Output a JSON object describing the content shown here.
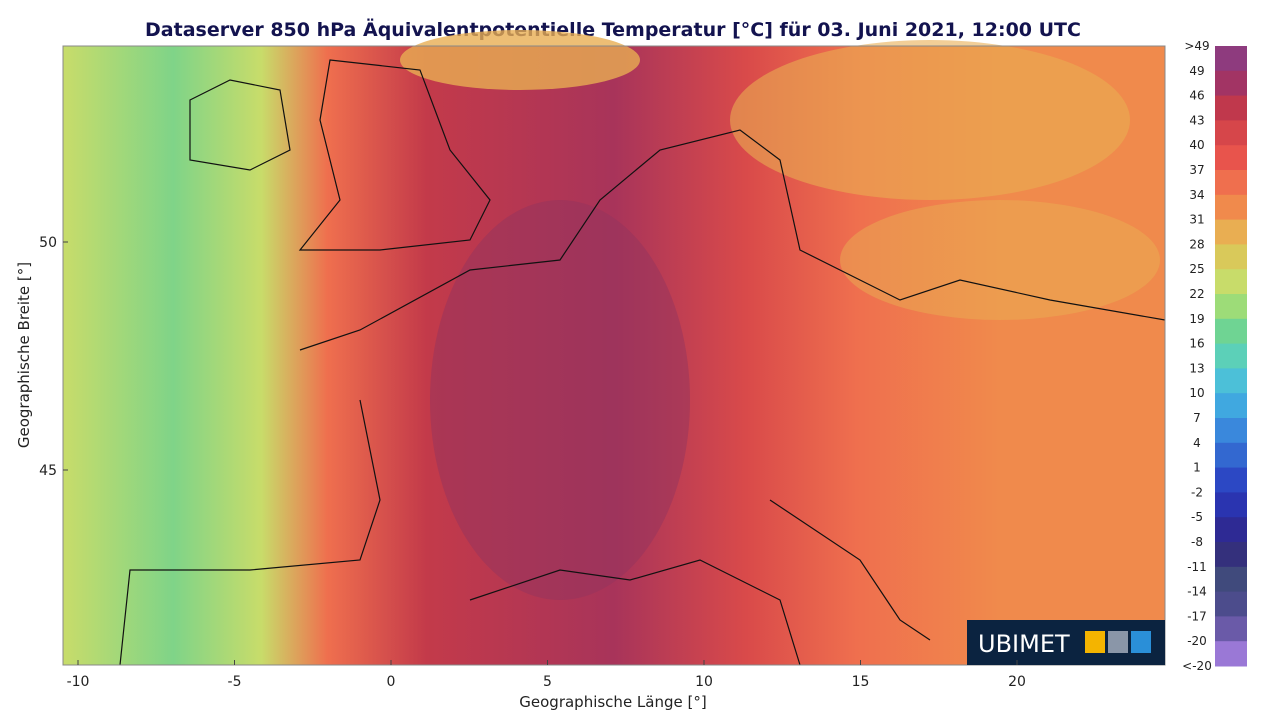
{
  "title": "Dataserver 850 hPa Äquivalentpotentielle Temperatur [°C] für 03. Juni 2021, 12:00 UTC",
  "x_axis": {
    "label": "Geographische Länge [°]",
    "ticks": [
      -10,
      -5,
      0,
      5,
      10,
      15,
      20
    ]
  },
  "y_axis": {
    "label": "Geographische Breite [°]",
    "ticks": [
      50,
      45
    ]
  },
  "colorbar": {
    "labels": [
      ">49",
      "49",
      "46",
      "43",
      "40",
      "37",
      "34",
      "31",
      "28",
      "25",
      "22",
      "19",
      "16",
      "13",
      "10",
      "7",
      "4",
      "1",
      "-2",
      "-5",
      "-8",
      "-11",
      "-14",
      "-17",
      "-20",
      "<-20"
    ],
    "colors": [
      "#8e3b7e",
      "#a23464",
      "#c0384c",
      "#d6464a",
      "#e8544c",
      "#ef6f4e",
      "#f08a4c",
      "#e9ae52",
      "#d9c95a",
      "#c8dc6a",
      "#9ddc78",
      "#6fd493",
      "#5cd0b8",
      "#4cc0d8",
      "#40a8e0",
      "#3a88dc",
      "#3368d0",
      "#2c48c4",
      "#2a34b0",
      "#2e2a94",
      "#34307c",
      "#404a7c",
      "#4c4c8c",
      "#6a5aa8",
      "#9a78d6"
    ]
  },
  "logo": {
    "text": "UBIMET"
  }
}
